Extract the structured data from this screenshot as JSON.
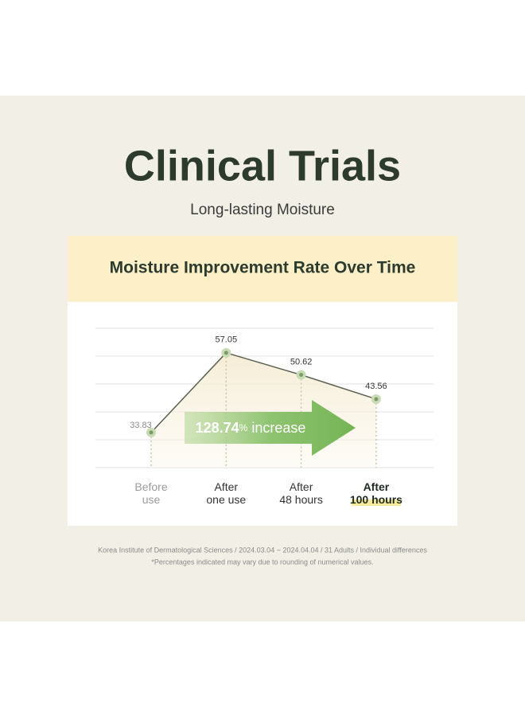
{
  "title": "Clinical Trials",
  "subtitle": "Long-lasting Moisture",
  "chart_data": {
    "type": "line",
    "title": "Moisture Improvement Rate Over Time",
    "categories": [
      "Before use",
      "After one use",
      "After 48 hours",
      "After 100 hours"
    ],
    "values": [
      33.83,
      57.05,
      50.62,
      43.56
    ],
    "color": "#5b5f50",
    "ylim": [
      23.6,
      64.2
    ],
    "annotation": {
      "value": "128.74",
      "unit": "%",
      "text": "increase"
    }
  },
  "footnotes": [
    "Korea Institute of Dermatological Sciences / 2024.03.04 ~ 2024.04.04 / 31 Adults / Individual differences",
    "*Percentages indicated may vary due to rounding of numerical values."
  ]
}
